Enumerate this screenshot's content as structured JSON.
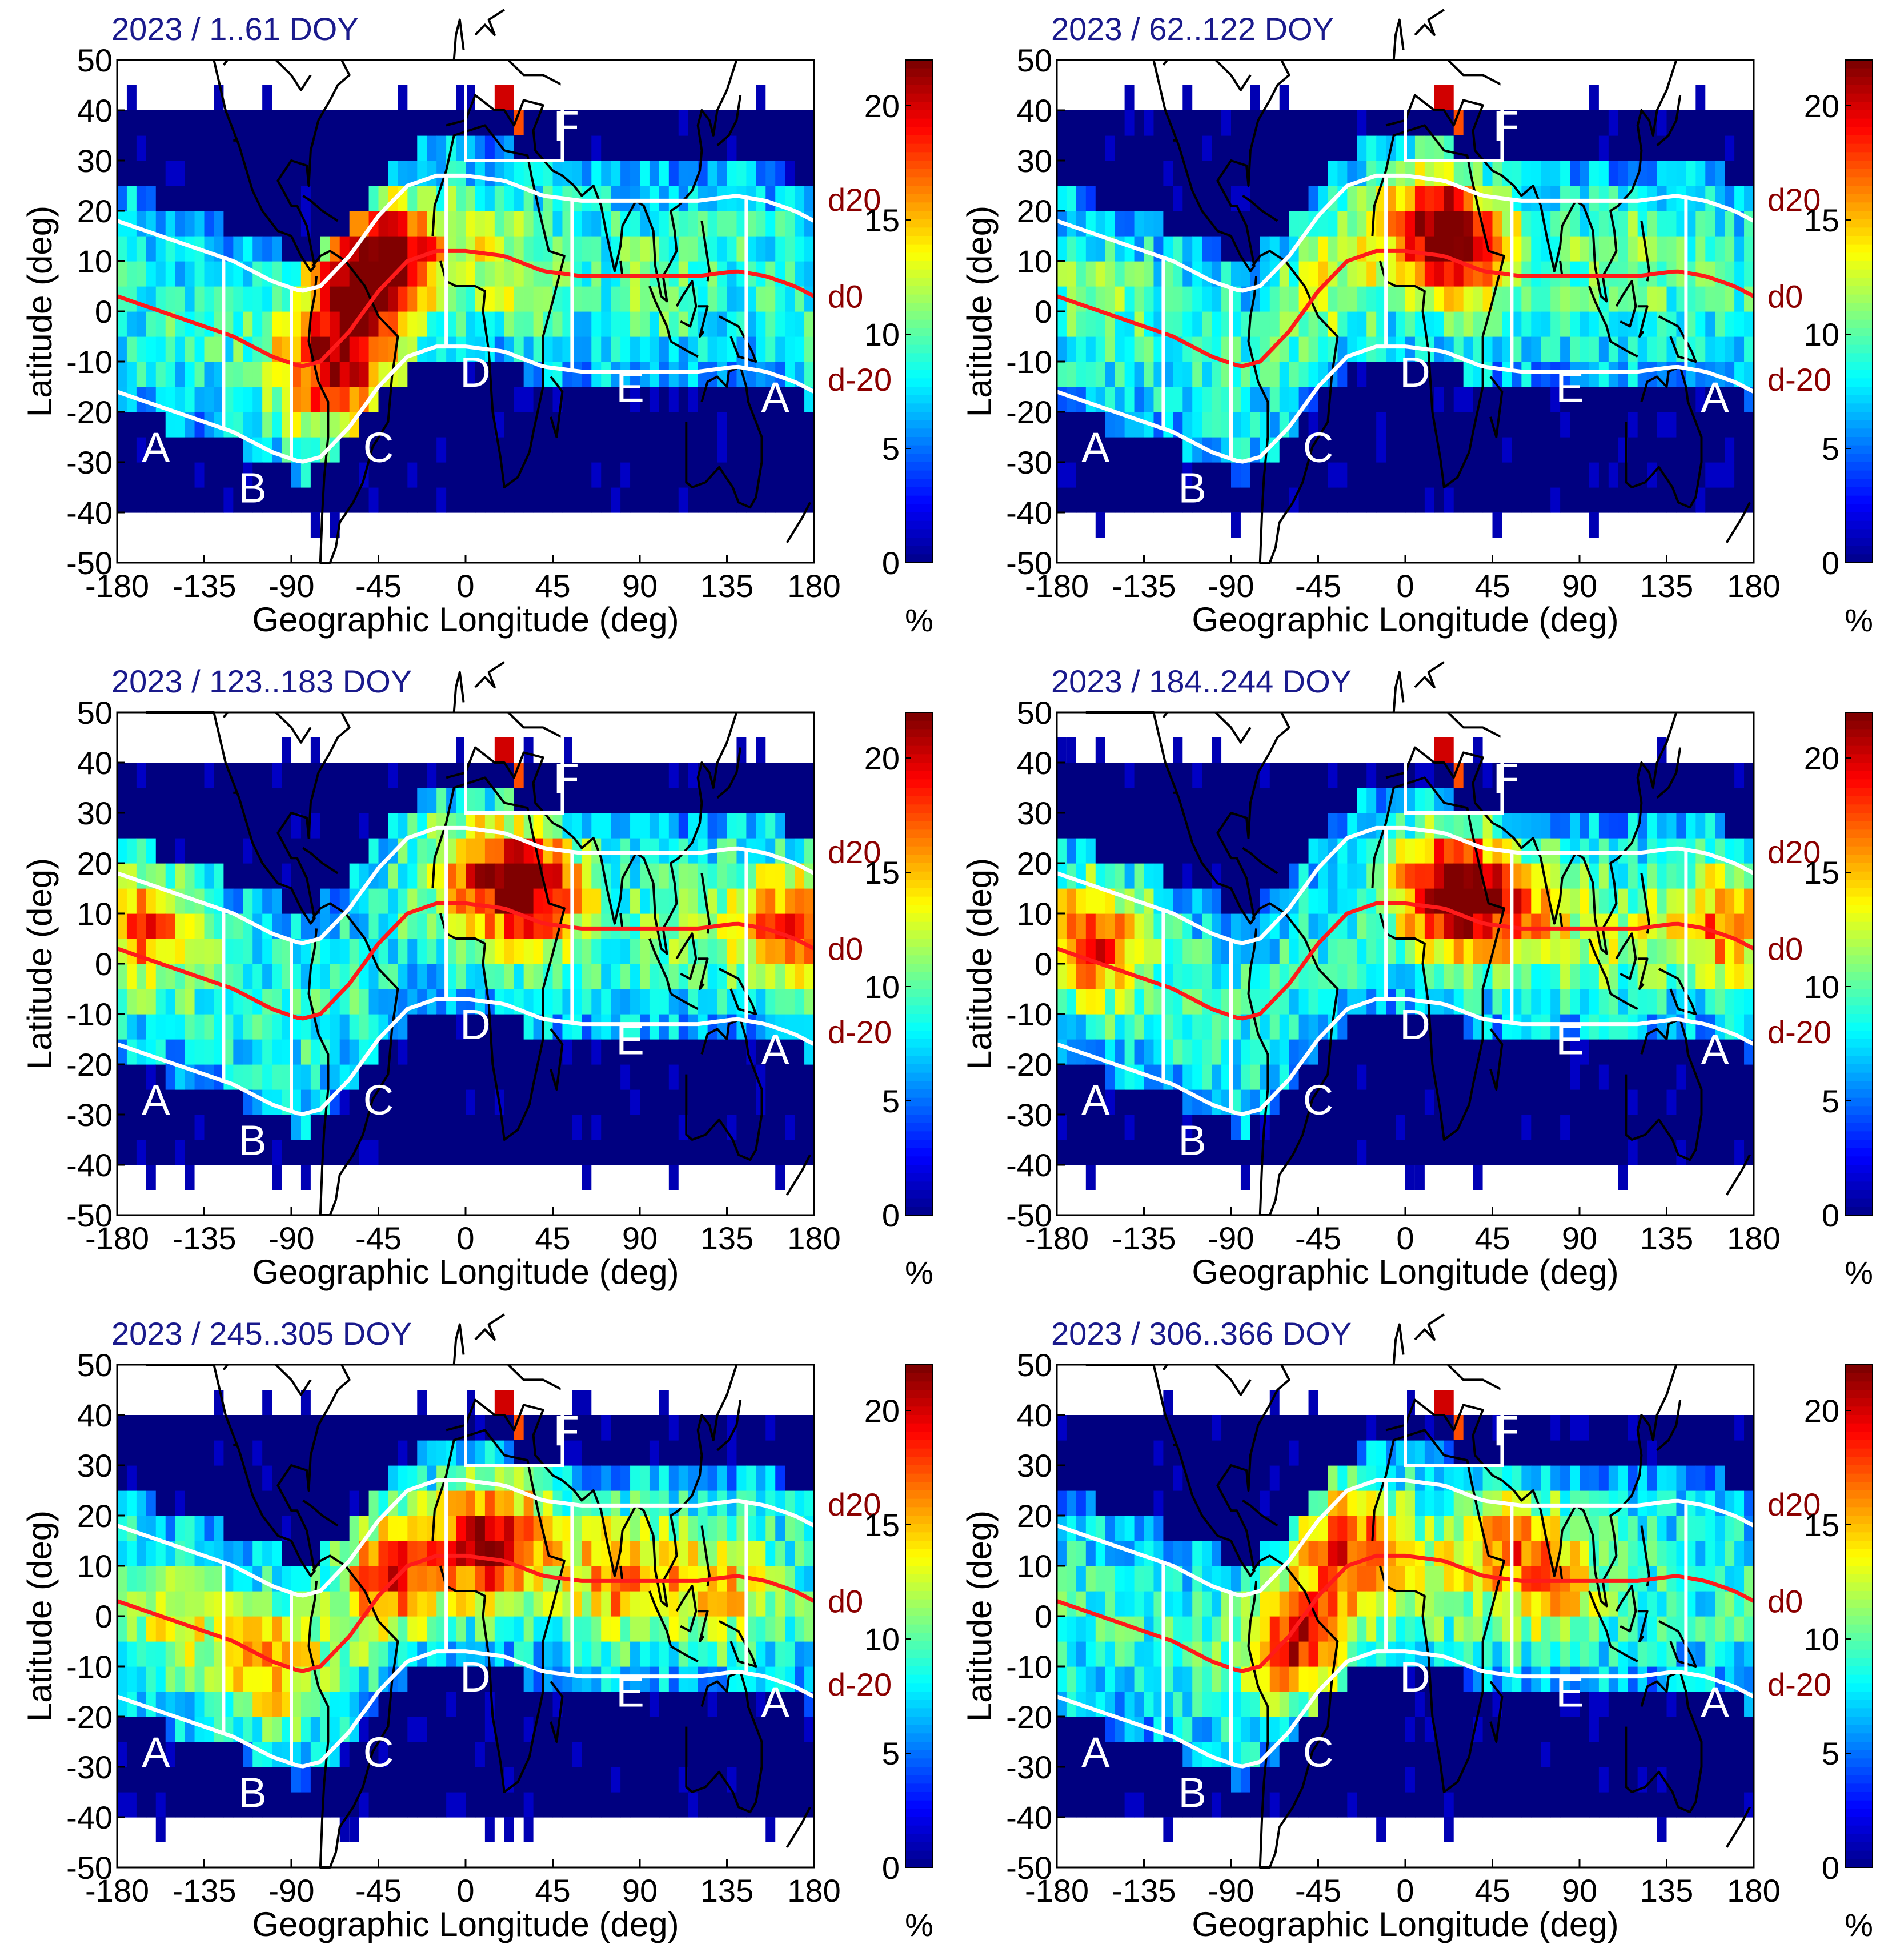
{
  "figure": {
    "xlabel": "Geographic Longitude (deg)",
    "ylabel": "Latitude (deg)",
    "colorbar_unit": "%",
    "x_ticks": [
      "-180",
      "-135",
      "-90",
      "-45",
      "0",
      "45",
      "90",
      "135",
      "180"
    ],
    "y_ticks": [
      "50",
      "40",
      "30",
      "20",
      "10",
      "0",
      "-10",
      "-20",
      "-30",
      "-40",
      "-50"
    ],
    "colorbar_ticks": [
      "20",
      "15",
      "10",
      "5",
      "0"
    ],
    "line_labels": [
      "d20",
      "d0",
      "d-20"
    ],
    "region_labels": [
      "A",
      "B",
      "C",
      "D",
      "E",
      "F"
    ],
    "colors": {
      "title": "#1a1a8c",
      "line_label": "#8b0000",
      "modip_d0": "#ff1a1a",
      "boundary": "#ffffff",
      "coast": "#000000",
      "background_bin": "#00008f"
    }
  },
  "chart_data": [
    {
      "type": "heatmap",
      "title": "2023 / 1..61 DOY",
      "xlabel": "Geographic Longitude (deg)",
      "ylabel": "Latitude (deg)",
      "xlim": [
        -180,
        180
      ],
      "ylim": [
        -50,
        50
      ],
      "clim": [
        0,
        22
      ],
      "colorbar_label": "%",
      "hotspots": [
        {
          "lon": -55,
          "lat": 5,
          "value": 19
        },
        {
          "lon": -35,
          "lat": 12,
          "value": 16
        },
        {
          "lon": -60,
          "lat": -15,
          "value": 15
        },
        {
          "lon": -80,
          "lat": -10,
          "value": 12
        },
        {
          "lon": 20,
          "lat": 8,
          "value": 11
        },
        {
          "lon": 100,
          "lat": 5,
          "value": 9
        }
      ],
      "modip_lines": [
        "d20",
        "d0",
        "d-20"
      ]
    },
    {
      "type": "heatmap",
      "title": "2023 / 62..122 DOY",
      "xlabel": "Geographic Longitude (deg)",
      "ylabel": "Latitude (deg)",
      "xlim": [
        -180,
        180
      ],
      "ylim": [
        -50,
        50
      ],
      "clim": [
        0,
        22
      ],
      "colorbar_label": "%",
      "hotspots": [
        {
          "lon": 30,
          "lat": 12,
          "value": 18
        },
        {
          "lon": 10,
          "lat": 20,
          "value": 15
        },
        {
          "lon": -40,
          "lat": 5,
          "value": 11
        },
        {
          "lon": 110,
          "lat": 10,
          "value": 10
        },
        {
          "lon": -160,
          "lat": 5,
          "value": 9
        }
      ],
      "modip_lines": [
        "d20",
        "d0",
        "d-20"
      ]
    },
    {
      "type": "heatmap",
      "title": "2023 / 123..183 DOY",
      "xlabel": "Geographic Longitude (deg)",
      "ylabel": "Latitude (deg)",
      "xlim": [
        -180,
        180
      ],
      "ylim": [
        -50,
        50
      ],
      "clim": [
        0,
        22
      ],
      "colorbar_label": "%",
      "hotspots": [
        {
          "lon": 35,
          "lat": 15,
          "value": 19
        },
        {
          "lon": -165,
          "lat": 8,
          "value": 16
        },
        {
          "lon": 165,
          "lat": 8,
          "value": 16
        },
        {
          "lon": 5,
          "lat": 20,
          "value": 14
        },
        {
          "lon": 110,
          "lat": 5,
          "value": 9
        }
      ],
      "modip_lines": [
        "d20",
        "d0",
        "d-20"
      ]
    },
    {
      "type": "heatmap",
      "title": "2023 / 184..244 DOY",
      "xlabel": "Geographic Longitude (deg)",
      "ylabel": "Latitude (deg)",
      "xlim": [
        -180,
        180
      ],
      "ylim": [
        -50,
        50
      ],
      "clim": [
        0,
        22
      ],
      "colorbar_label": "%",
      "hotspots": [
        {
          "lon": 25,
          "lat": 15,
          "value": 22
        },
        {
          "lon": -160,
          "lat": 5,
          "value": 17
        },
        {
          "lon": 165,
          "lat": 8,
          "value": 15
        },
        {
          "lon": 60,
          "lat": 10,
          "value": 13
        },
        {
          "lon": 110,
          "lat": 5,
          "value": 10
        }
      ],
      "modip_lines": [
        "d20",
        "d0",
        "d-20"
      ]
    },
    {
      "type": "heatmap",
      "title": "2023 / 245..305 DOY",
      "xlabel": "Geographic Longitude (deg)",
      "ylabel": "Latitude (deg)",
      "xlim": [
        -180,
        180
      ],
      "ylim": [
        -50,
        50
      ],
      "clim": [
        0,
        22
      ],
      "colorbar_label": "%",
      "hotspots": [
        {
          "lon": 15,
          "lat": 15,
          "value": 20
        },
        {
          "lon": -40,
          "lat": 8,
          "value": 17
        },
        {
          "lon": 80,
          "lat": 8,
          "value": 15
        },
        {
          "lon": -100,
          "lat": -10,
          "value": 14
        },
        {
          "lon": 130,
          "lat": 5,
          "value": 13
        },
        {
          "lon": -150,
          "lat": 0,
          "value": 11
        }
      ],
      "modip_lines": [
        "d20",
        "d0",
        "d-20"
      ]
    },
    {
      "type": "heatmap",
      "title": "2023 / 306..366 DOY",
      "xlabel": "Geographic Longitude (deg)",
      "ylabel": "Latitude (deg)",
      "xlim": [
        -180,
        180
      ],
      "ylim": [
        -50,
        50
      ],
      "clim": [
        0,
        22
      ],
      "colorbar_label": "%",
      "hotspots": [
        {
          "lon": -55,
          "lat": -5,
          "value": 18
        },
        {
          "lon": -30,
          "lat": 15,
          "value": 16
        },
        {
          "lon": 55,
          "lat": 15,
          "value": 14
        },
        {
          "lon": 80,
          "lat": 5,
          "value": 12
        },
        {
          "lon": 10,
          "lat": 5,
          "value": 10
        }
      ],
      "modip_lines": [
        "d20",
        "d0",
        "d-20"
      ]
    }
  ]
}
